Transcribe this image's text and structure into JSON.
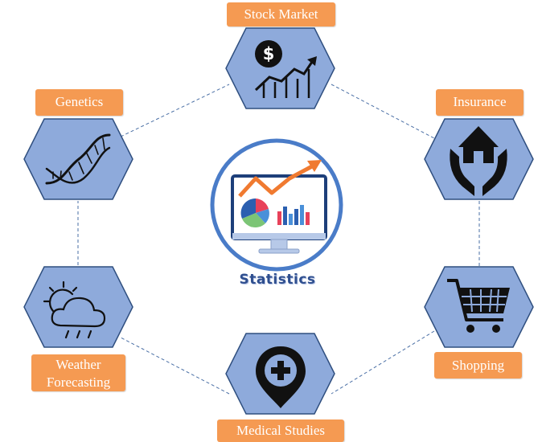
{
  "diagram": {
    "center": {
      "label": "Statistics",
      "icon": "statistics-monitor-chart-icon"
    },
    "nodes": [
      {
        "id": "stock",
        "label": "Stock Market",
        "icon": "dollar-chart-icon"
      },
      {
        "id": "insurance",
        "label": "Insurance",
        "icon": "house-hands-icon"
      },
      {
        "id": "shopping",
        "label": "Shopping",
        "icon": "shopping-cart-icon"
      },
      {
        "id": "medical",
        "label": "Medical Studies",
        "icon": "medical-pin-icon"
      },
      {
        "id": "weather",
        "label": "Weather Forecasting",
        "label_lines": [
          "Weather",
          "Forecasting"
        ],
        "icon": "weather-cloud-sun-icon"
      },
      {
        "id": "genetics",
        "label": "Genetics",
        "icon": "dna-icon"
      }
    ]
  },
  "colors": {
    "hexagon_fill": "#8eaadb",
    "hexagon_stroke": "#2f4f7f",
    "label_fill": "#f59a52",
    "connector": "#4a6fa5",
    "center_ring": "#4a7cc8",
    "accent_orange": "#f07a30"
  }
}
